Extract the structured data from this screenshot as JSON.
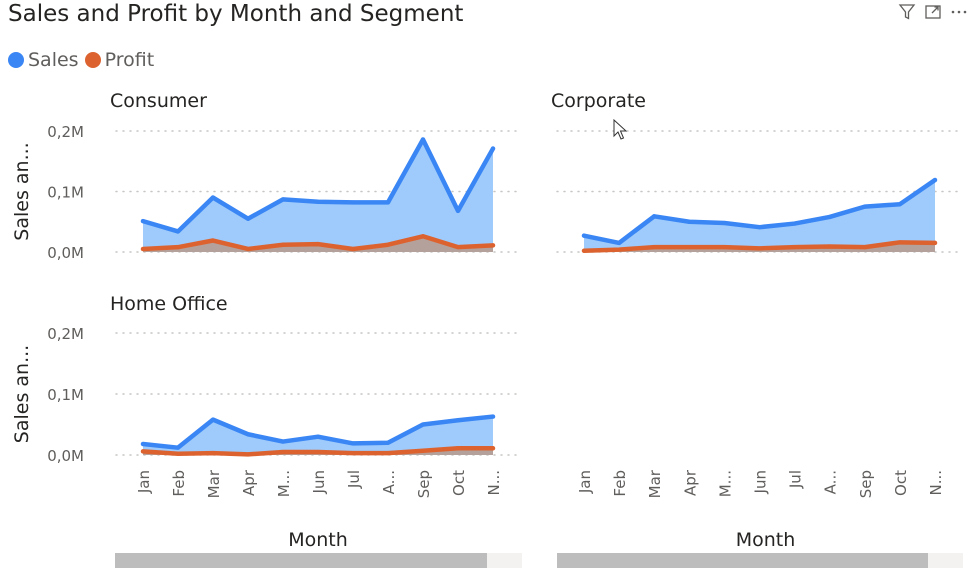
{
  "title": "Sales and Profit by Month and Segment",
  "toolbar_icons": [
    "filter-icon",
    "focus-mode-icon",
    "more-options-icon"
  ],
  "legend": [
    {
      "name": "Sales",
      "color": "#3a86f5"
    },
    {
      "name": "Profit",
      "color": "#dc6330"
    }
  ],
  "chart_data": {
    "type": "area",
    "title": "Sales and Profit by Month and Segment",
    "xlabel": "Month",
    "ylabel": "Sales an...",
    "ylim": [
      0,
      200000
    ],
    "yticks": [
      "0,0M",
      "0,1M",
      "0,2M"
    ],
    "grid": true,
    "legend_position": "top-left",
    "categories": [
      "Jan",
      "Feb",
      "Mar",
      "Apr",
      "May",
      "Jun",
      "Jul",
      "Aug",
      "Sep",
      "Oct",
      "Nov"
    ],
    "category_tick_labels": [
      "Jan",
      "Feb",
      "Mar",
      "Apr",
      "M...",
      "Jun",
      "Jul",
      "A...",
      "Sep",
      "Oct",
      "N..."
    ],
    "panels": [
      {
        "name": "Consumer",
        "series": [
          {
            "name": "Sales",
            "values": [
              51000,
              34000,
              90000,
              55000,
              87000,
              83000,
              82000,
              82000,
              186000,
              68000,
              171000
            ]
          },
          {
            "name": "Profit",
            "values": [
              5000,
              8000,
              19000,
              5000,
              12000,
              13000,
              5000,
              12000,
              26000,
              8000,
              11000
            ]
          }
        ]
      },
      {
        "name": "Corporate",
        "series": [
          {
            "name": "Sales",
            "values": [
              27000,
              15000,
              59000,
              50000,
              48000,
              41000,
              47000,
              58000,
              75000,
              79000,
              119000
            ]
          },
          {
            "name": "Profit",
            "values": [
              2000,
              4000,
              8000,
              8000,
              8000,
              6000,
              8000,
              9000,
              8000,
              16000,
              15000
            ]
          }
        ]
      },
      {
        "name": "Home Office",
        "series": [
          {
            "name": "Sales",
            "values": [
              18000,
              12000,
              58000,
              34000,
              22000,
              30000,
              19000,
              20000,
              50000,
              57000,
              63000
            ]
          },
          {
            "name": "Profit",
            "values": [
              6000,
              2000,
              3000,
              1000,
              5000,
              5000,
              3000,
              3000,
              7000,
              11000,
              11000
            ]
          }
        ]
      }
    ]
  }
}
